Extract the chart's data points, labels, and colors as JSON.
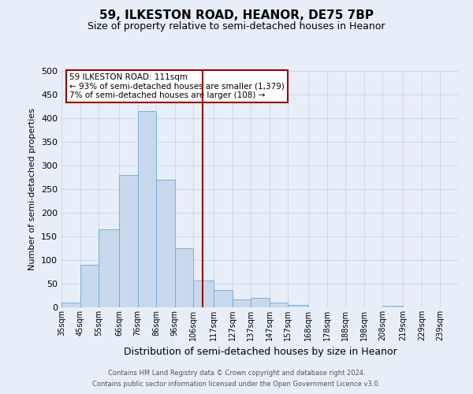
{
  "title": "59, ILKESTON ROAD, HEANOR, DE75 7BP",
  "subtitle": "Size of property relative to semi-detached houses in Heanor",
  "xlabel": "Distribution of semi-detached houses by size in Heanor",
  "ylabel": "Number of semi-detached properties",
  "bin_labels": [
    "35sqm",
    "45sqm",
    "55sqm",
    "66sqm",
    "76sqm",
    "86sqm",
    "96sqm",
    "106sqm",
    "117sqm",
    "127sqm",
    "137sqm",
    "147sqm",
    "157sqm",
    "168sqm",
    "178sqm",
    "188sqm",
    "198sqm",
    "208sqm",
    "219sqm",
    "229sqm",
    "239sqm"
  ],
  "bin_edges": [
    35,
    45,
    55,
    66,
    76,
    86,
    96,
    106,
    117,
    127,
    137,
    147,
    157,
    168,
    178,
    188,
    198,
    208,
    219,
    229,
    239,
    249
  ],
  "bar_heights": [
    10,
    90,
    165,
    280,
    415,
    270,
    125,
    57,
    37,
    17,
    20,
    10,
    5,
    0,
    0,
    0,
    0,
    4,
    0,
    0,
    0
  ],
  "bar_color": "#c8d9ee",
  "bar_edge_color": "#6aaad4",
  "property_size": 111,
  "vline_color": "#990000",
  "annotation_title": "59 ILKESTON ROAD: 111sqm",
  "annotation_line1": "← 93% of semi-detached houses are smaller (1,379)",
  "annotation_line2": "7% of semi-detached houses are larger (108) →",
  "annotation_box_edgecolor": "#990000",
  "ylim": [
    0,
    500
  ],
  "yticks": [
    0,
    50,
    100,
    150,
    200,
    250,
    300,
    350,
    400,
    450,
    500
  ],
  "grid_color": "#c8d4e8",
  "bg_color": "#e8eef8",
  "footer1": "Contains HM Land Registry data © Crown copyright and database right 2024.",
  "footer2": "Contains public sector information licensed under the Open Government Licence v3.0."
}
